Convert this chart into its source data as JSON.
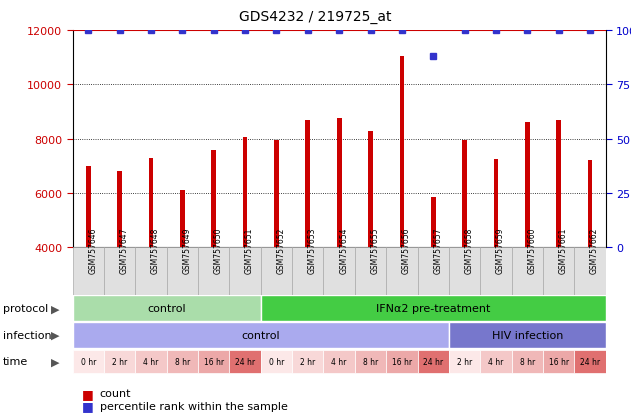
{
  "title": "GDS4232 / 219725_at",
  "samples": [
    "GSM757646",
    "GSM757647",
    "GSM757648",
    "GSM757649",
    "GSM757650",
    "GSM757651",
    "GSM757652",
    "GSM757653",
    "GSM757654",
    "GSM757655",
    "GSM757656",
    "GSM757657",
    "GSM757658",
    "GSM757659",
    "GSM757660",
    "GSM757661",
    "GSM757662"
  ],
  "bar_values": [
    7000,
    6800,
    7300,
    6100,
    7600,
    8050,
    7950,
    8700,
    8750,
    8300,
    11050,
    5850,
    7950,
    7250,
    8600,
    8700,
    7200
  ],
  "percentile_values": [
    100,
    100,
    100,
    100,
    100,
    100,
    100,
    100,
    100,
    100,
    100,
    88,
    100,
    100,
    100,
    100,
    100
  ],
  "bar_color": "#cc0000",
  "dot_color": "#3333cc",
  "left_ylim": [
    4000,
    12000
  ],
  "left_yticks": [
    4000,
    6000,
    8000,
    10000,
    12000
  ],
  "right_ylim": [
    0,
    100
  ],
  "right_yticks": [
    0,
    25,
    50,
    75,
    100
  ],
  "protocol_labels": [
    {
      "text": "control",
      "start": 0,
      "end": 6,
      "color": "#aaddaa"
    },
    {
      "text": "IFNα2 pre-treatment",
      "start": 6,
      "end": 17,
      "color": "#44cc44"
    }
  ],
  "infection_labels": [
    {
      "text": "control",
      "start": 0,
      "end": 12,
      "color": "#aaaaee"
    },
    {
      "text": "HIV infection",
      "start": 12,
      "end": 17,
      "color": "#7777cc"
    }
  ],
  "time_labels": [
    "0 hr",
    "2 hr",
    "4 hr",
    "8 hr",
    "16 hr",
    "24 hr",
    "0 hr",
    "2 hr",
    "4 hr",
    "8 hr",
    "16 hr",
    "24 hr",
    "2 hr",
    "4 hr",
    "8 hr",
    "16 hr",
    "24 hr"
  ],
  "time_colors": [
    "#fce8e8",
    "#f8d8d8",
    "#f4c8c8",
    "#f0b8b8",
    "#eca8a8",
    "#e07070",
    "#fce8e8",
    "#f8d8d8",
    "#f4c8c8",
    "#f0b8b8",
    "#eca8a8",
    "#e07070",
    "#fce8e8",
    "#f4c8c8",
    "#f0b8b8",
    "#eca8a8",
    "#e07070"
  ],
  "legend_count_color": "#cc0000",
  "legend_dot_color": "#3333cc"
}
